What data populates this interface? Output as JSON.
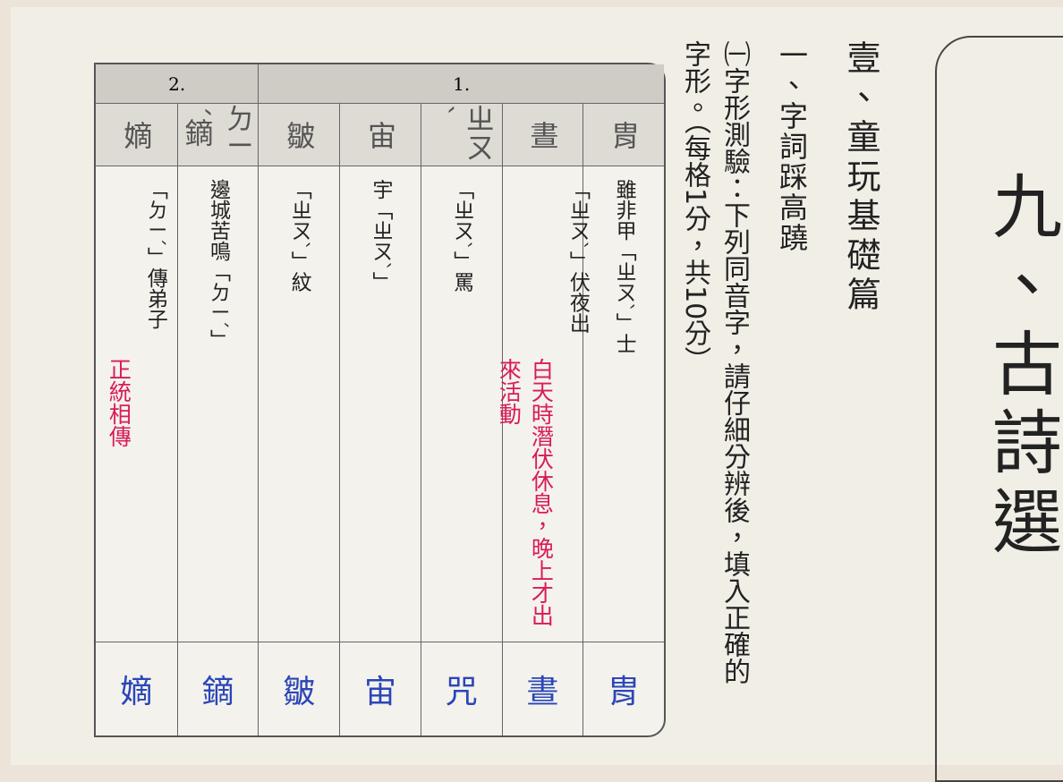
{
  "header": {
    "title": "九、古詩選"
  },
  "section": "壹、童玩基礎篇",
  "subsection": "一、字詞踩高蹺",
  "instruction": "㈠字形測驗：下列同音字，請仔細分辨後，填入正確的字形。（每格1分，共10分）",
  "table": {
    "groups": [
      {
        "label": "1.",
        "span": 5
      },
      {
        "label": "2.",
        "span": 2
      }
    ],
    "rows": [
      {
        "head": "胄",
        "prompt": "雖非甲「ㄓㄡˋ」士",
        "answer": "胄"
      },
      {
        "head": "晝",
        "prompt": "「ㄓㄡˋ」伏夜出",
        "note": "白天時潛伏休息，晚上才出來活動",
        "answer": "晝"
      },
      {
        "head": "ㄓㄡˋ",
        "prompt": "「ㄓㄡˋ」罵",
        "answer": "咒"
      },
      {
        "head": "宙",
        "prompt": "宇「ㄓㄡˋ」",
        "answer": "宙"
      },
      {
        "head": "皺",
        "prompt": "「ㄓㄡˋ」紋",
        "answer": "皺"
      },
      {
        "head": "ㄉㄧˊ鏑",
        "prompt": "邊城苦鳴「ㄉㄧˊ」",
        "answer": "鏑"
      },
      {
        "head": "嫡",
        "prompt": "「ㄉㄧˊ」傳弟子",
        "note": "正統相傳",
        "answer": "嫡"
      }
    ]
  }
}
